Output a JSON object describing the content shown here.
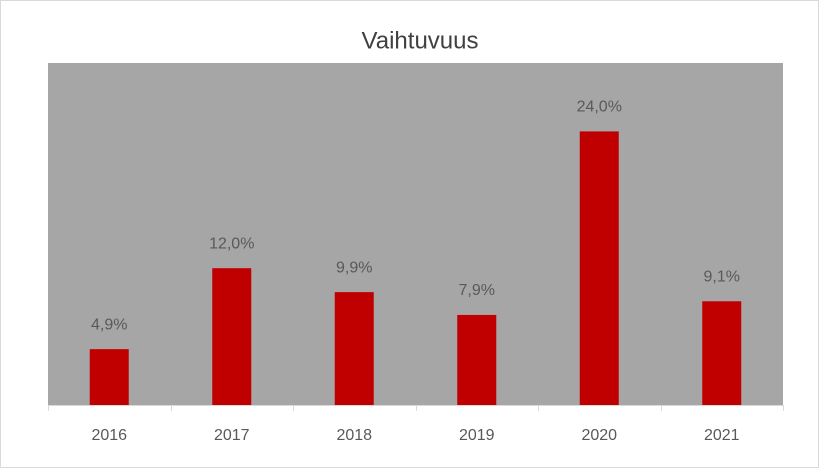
{
  "chart_data": {
    "type": "bar",
    "title": "Vaihtuvuus",
    "categories": [
      "2016",
      "2017",
      "2018",
      "2019",
      "2020",
      "2021"
    ],
    "values": [
      4.9,
      12.0,
      9.9,
      7.9,
      24.0,
      9.1
    ],
    "value_labels": [
      "4,9%",
      "12,0%",
      "9,9%",
      "7,9%",
      "24,0%",
      "9,1%"
    ],
    "color": "#c00000",
    "plot_background": "#a6a6a6",
    "ylim": [
      0,
      30
    ]
  }
}
